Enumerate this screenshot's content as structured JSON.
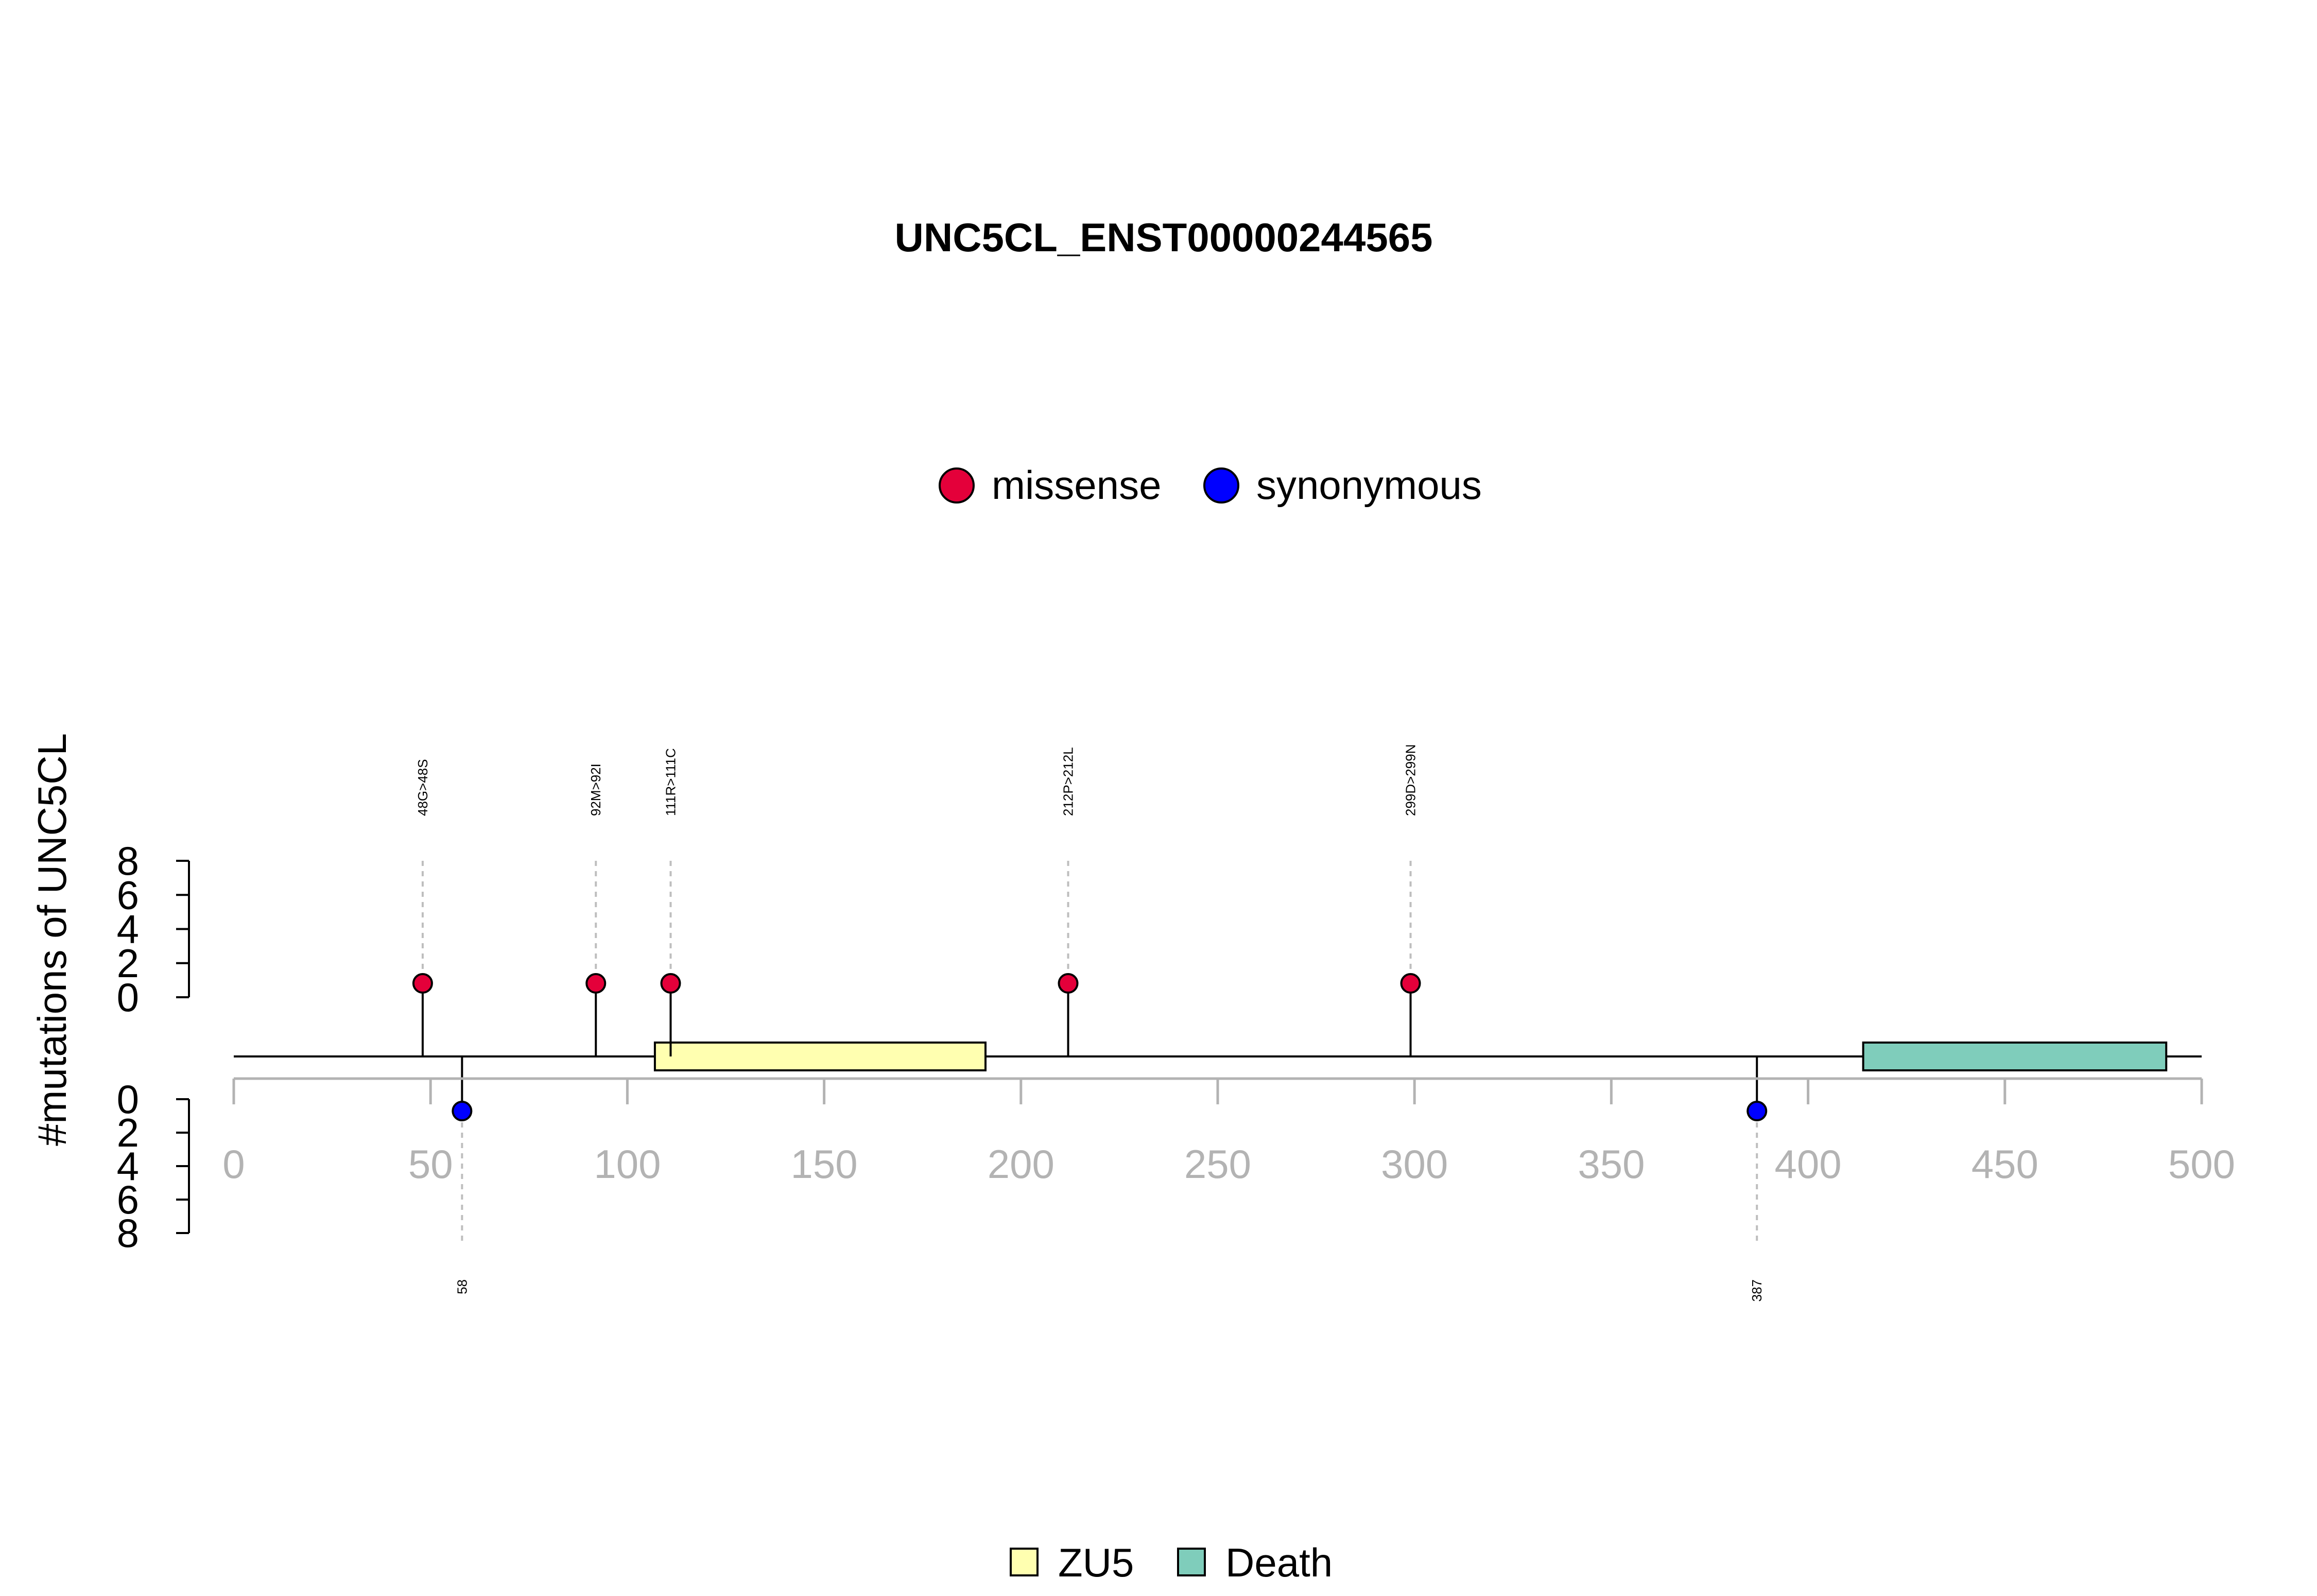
{
  "chart_data": {
    "type": "lollipop",
    "title": "UNC5CL_ENST00000244565",
    "ylabel": "#mutations of UNC5CL",
    "x_ticks": [
      0,
      50,
      100,
      150,
      200,
      250,
      300,
      350,
      400,
      450,
      500
    ],
    "xlim": [
      0,
      500
    ],
    "y_ticks_top": [
      0,
      2,
      4,
      6,
      8
    ],
    "y_ticks_bottom": [
      0,
      2,
      4,
      6,
      8
    ],
    "ylim": [
      0,
      8
    ],
    "mutation_legend": [
      {
        "label": "missense",
        "color": "#E4003A"
      },
      {
        "label": "synonymous",
        "color": "#0000FF"
      }
    ],
    "domain_legend": [
      {
        "label": "ZU5",
        "color": "#FFFFB0"
      },
      {
        "label": "Death",
        "color": "#7FCDBB"
      }
    ],
    "domains": [
      {
        "name": "ZU5",
        "start": 107,
        "end": 191,
        "color": "#FFFFB0"
      },
      {
        "name": "Death",
        "start": 414,
        "end": 491,
        "color": "#7FCDBB"
      }
    ],
    "mutations": [
      {
        "position": 48,
        "count": 1,
        "type": "missense",
        "label": "48G>48S",
        "side": "top"
      },
      {
        "position": 92,
        "count": 1,
        "type": "missense",
        "label": "92M>92I",
        "side": "top"
      },
      {
        "position": 111,
        "count": 1,
        "type": "missense",
        "label": "111R>111C",
        "side": "top"
      },
      {
        "position": 212,
        "count": 1,
        "type": "missense",
        "label": "212P>212L",
        "side": "top"
      },
      {
        "position": 299,
        "count": 1,
        "type": "missense",
        "label": "299D>299N",
        "side": "top"
      },
      {
        "position": 58,
        "count": 1,
        "type": "synonymous",
        "label": "58",
        "side": "bottom"
      },
      {
        "position": 387,
        "count": 1,
        "type": "synonymous",
        "label": "387",
        "side": "bottom"
      }
    ],
    "colors": {
      "axis_gray": "#B3B3B3",
      "guide_gray": "#BEBEBE",
      "stroke": "#000000"
    }
  }
}
